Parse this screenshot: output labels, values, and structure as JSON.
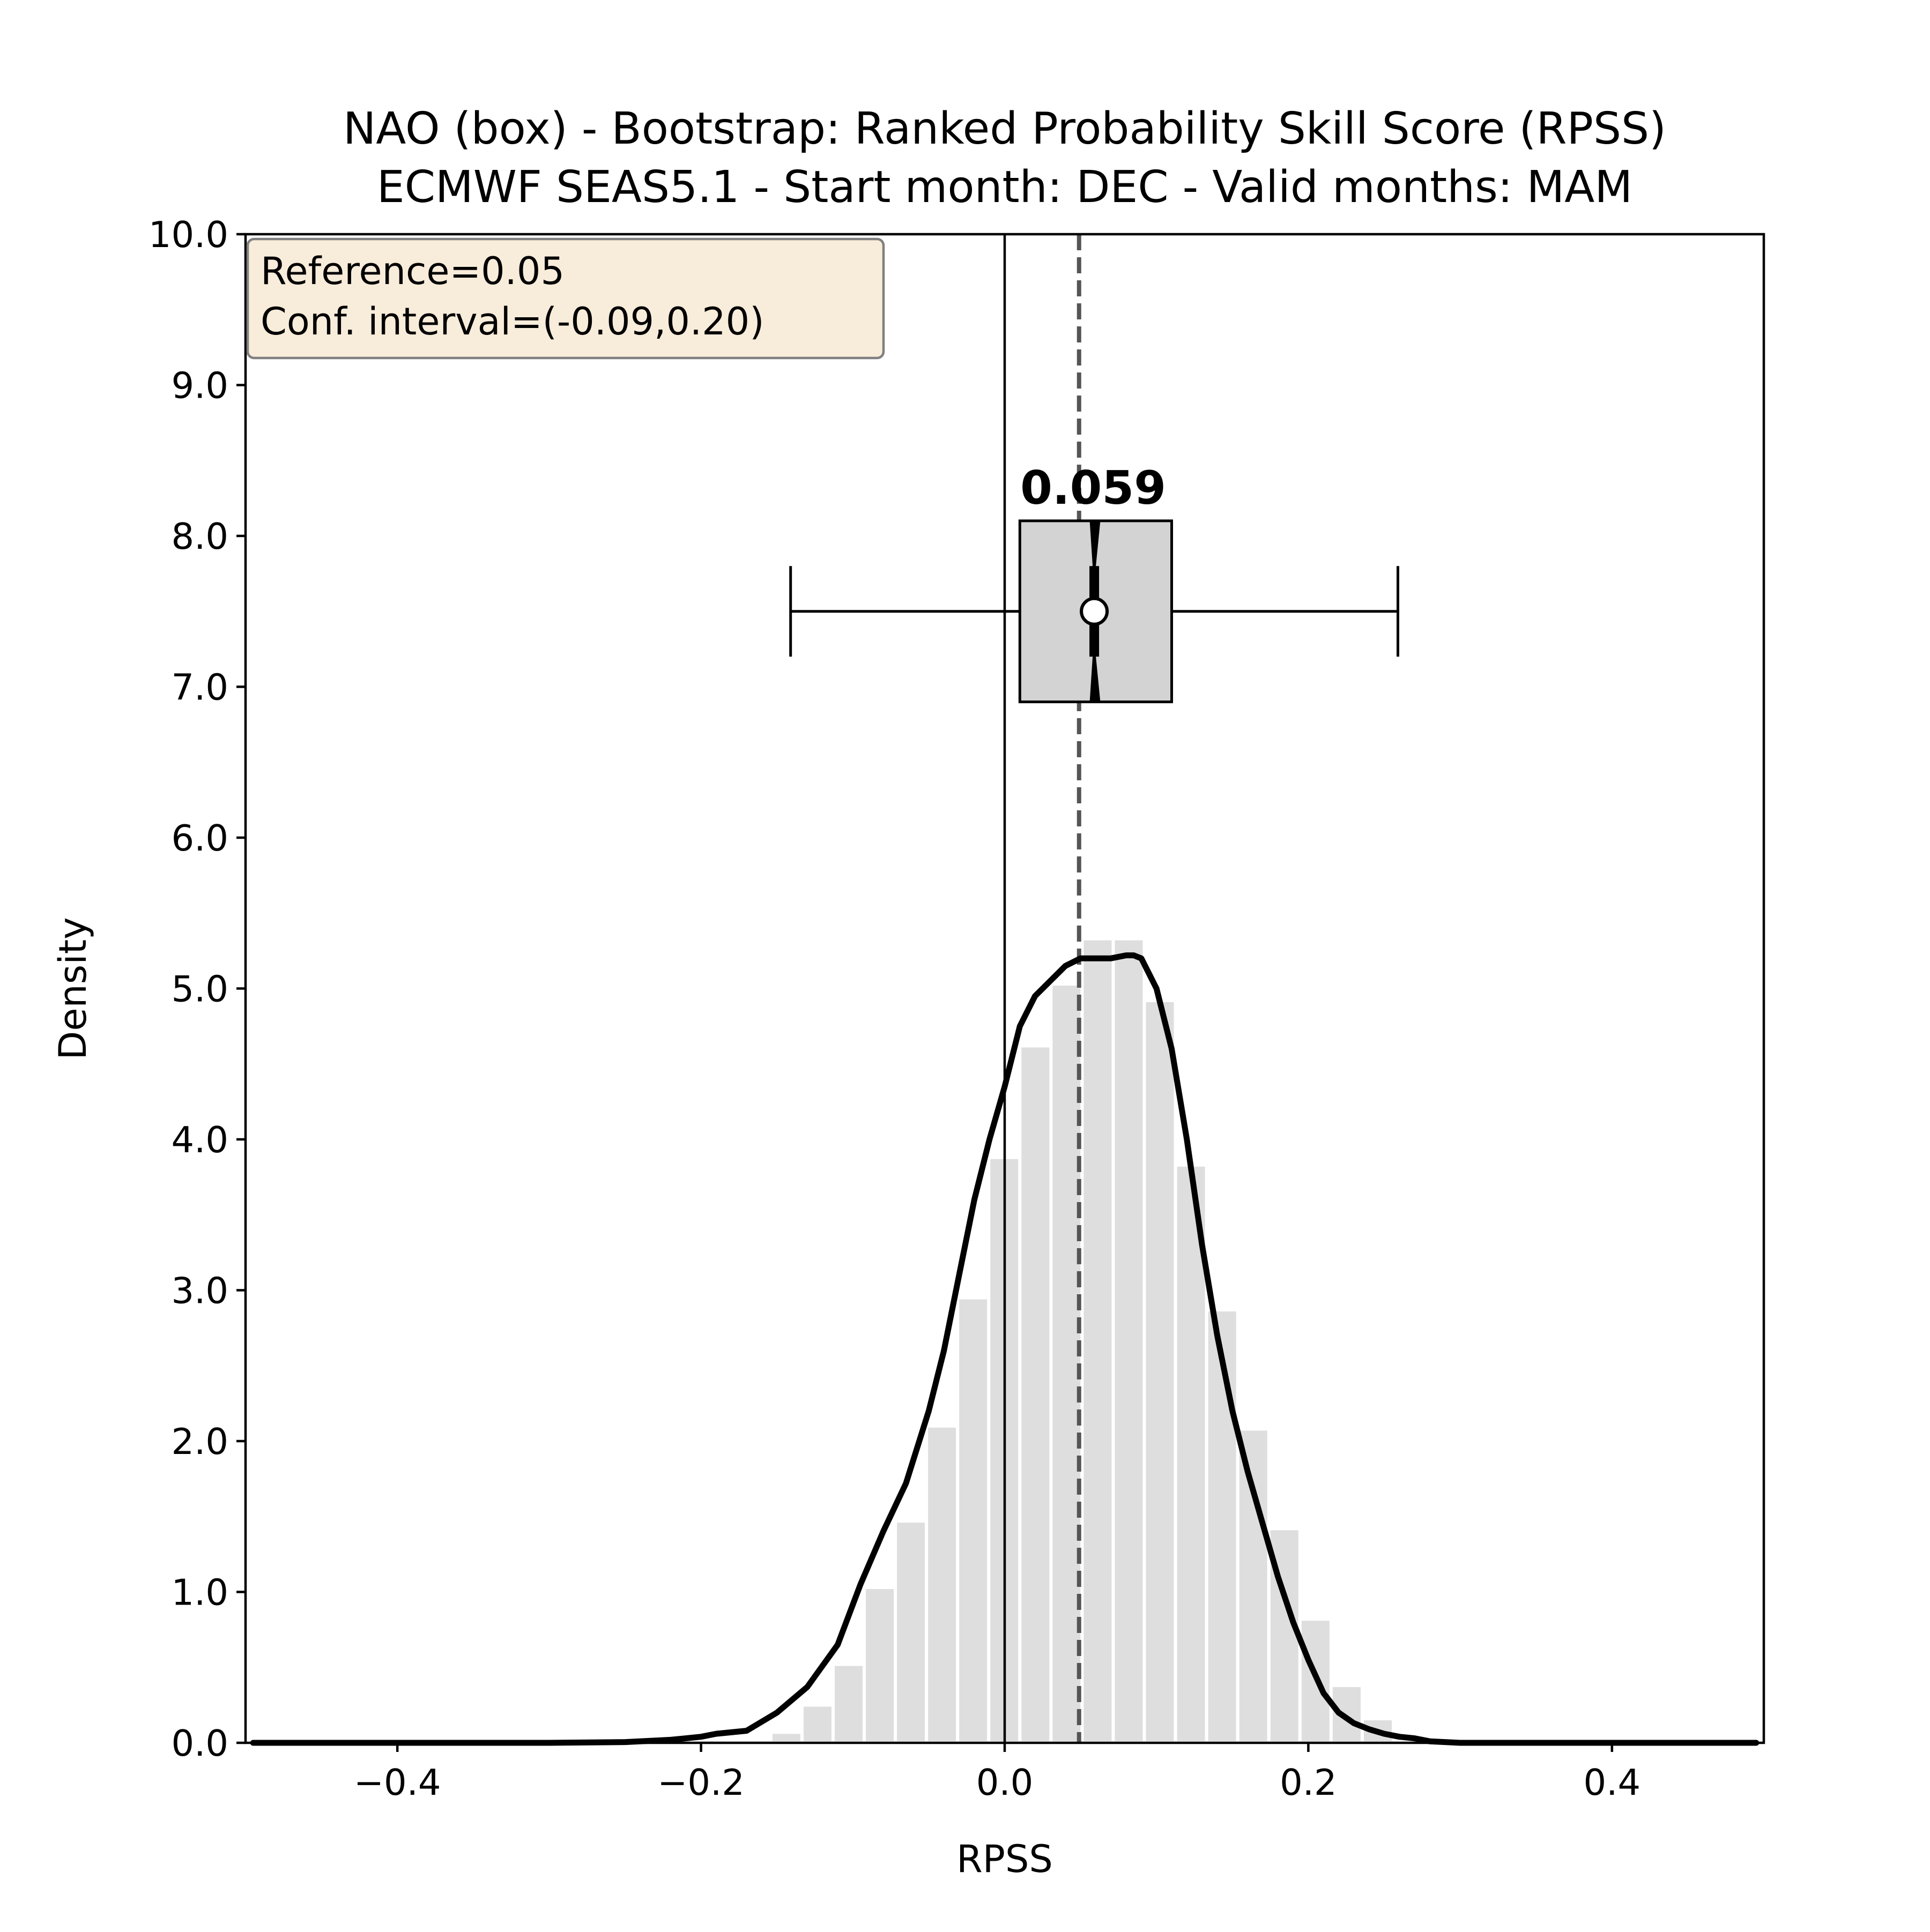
{
  "chart_data": {
    "type": "histogram",
    "title_lines": [
      "NAO (box) - Bootstrap: Ranked Probability Skill Score (RPSS)",
      "ECMWF SEAS5.1 - Start month: DEC - Valid months: MAM"
    ],
    "xlabel": "RPSS",
    "ylabel": "Density",
    "xlim": [
      -0.5,
      0.5
    ],
    "ylim": [
      0.0,
      10.0
    ],
    "x_ticks": [
      -0.4,
      -0.2,
      0.0,
      0.2,
      0.4
    ],
    "x_tick_labels": [
      "−0.4",
      "−0.2",
      "0.0",
      "0.2",
      "0.4"
    ],
    "y_ticks": [
      0,
      1,
      2,
      3,
      4,
      5,
      6,
      7,
      8,
      9,
      10
    ],
    "y_tick_labels": [
      "0.0",
      "1.0",
      "2.0",
      "3.0",
      "4.0",
      "5.0",
      "6.0",
      "7.0",
      "8.0",
      "9.0",
      "10.0"
    ],
    "reference_box": {
      "lines": [
        "Reference=0.05",
        "Conf. interval=(-0.09,0.20)"
      ],
      "facecolor": "#f8ecda",
      "edgecolor": "#808080"
    },
    "zero_line_x": 0.0,
    "reference_line_x": 0.049,
    "histogram": {
      "bin_width": 0.0205,
      "bins": [
        {
          "x0": -0.154,
          "density": 0.07
        },
        {
          "x0": -0.1335,
          "density": 0.25
        },
        {
          "x0": -0.113,
          "density": 0.52
        },
        {
          "x0": -0.0925,
          "density": 1.03
        },
        {
          "x0": -0.072,
          "density": 1.47
        },
        {
          "x0": -0.0515,
          "density": 2.1
        },
        {
          "x0": -0.031,
          "density": 2.95
        },
        {
          "x0": -0.0105,
          "density": 3.88
        },
        {
          "x0": 0.01,
          "density": 4.62
        },
        {
          "x0": 0.0305,
          "density": 5.03
        },
        {
          "x0": 0.051,
          "density": 5.33
        },
        {
          "x0": 0.0715,
          "density": 5.33
        },
        {
          "x0": 0.092,
          "density": 4.92
        },
        {
          "x0": 0.1125,
          "density": 3.83
        },
        {
          "x0": 0.133,
          "density": 2.87
        },
        {
          "x0": 0.1535,
          "density": 2.08
        },
        {
          "x0": 0.174,
          "density": 1.42
        },
        {
          "x0": 0.1945,
          "density": 0.82
        },
        {
          "x0": 0.215,
          "density": 0.38
        },
        {
          "x0": 0.2355,
          "density": 0.16
        }
      ],
      "color": "#dedede"
    },
    "kde": {
      "x": [
        -0.495,
        -0.4,
        -0.3,
        -0.25,
        -0.22,
        -0.2,
        -0.19,
        -0.17,
        -0.15,
        -0.13,
        -0.11,
        -0.095,
        -0.08,
        -0.065,
        -0.05,
        -0.04,
        -0.03,
        -0.02,
        -0.01,
        0.0,
        0.01,
        0.02,
        0.03,
        0.04,
        0.05,
        0.06,
        0.07,
        0.08,
        0.085,
        0.09,
        0.1,
        0.11,
        0.12,
        0.13,
        0.14,
        0.15,
        0.16,
        0.17,
        0.18,
        0.19,
        0.2,
        0.21,
        0.22,
        0.23,
        0.24,
        0.25,
        0.26,
        0.27,
        0.28,
        0.3,
        0.35,
        0.4,
        0.495
      ],
      "y": [
        0.0,
        0.0,
        0.0,
        0.005,
        0.02,
        0.04,
        0.06,
        0.08,
        0.2,
        0.37,
        0.65,
        1.05,
        1.4,
        1.72,
        2.2,
        2.6,
        3.1,
        3.6,
        4.0,
        4.35,
        4.75,
        4.95,
        5.05,
        5.15,
        5.2,
        5.2,
        5.2,
        5.22,
        5.22,
        5.2,
        5.0,
        4.6,
        4.0,
        3.3,
        2.7,
        2.2,
        1.8,
        1.45,
        1.1,
        0.8,
        0.55,
        0.33,
        0.2,
        0.13,
        0.09,
        0.06,
        0.04,
        0.03,
        0.01,
        0.0,
        0.0,
        0.0,
        0.0
      ],
      "color": "#000000"
    },
    "boxplot": {
      "position_y": 7.5,
      "height": 1.2,
      "whisker_low": -0.141,
      "q1": 0.01,
      "median": 0.059,
      "q3": 0.11,
      "whisker_high": 0.259,
      "mean": 0.059,
      "notch_low": 0.056,
      "notch_high": 0.063,
      "facecolor": "#d3d3d3"
    },
    "median_label": "0.059"
  }
}
